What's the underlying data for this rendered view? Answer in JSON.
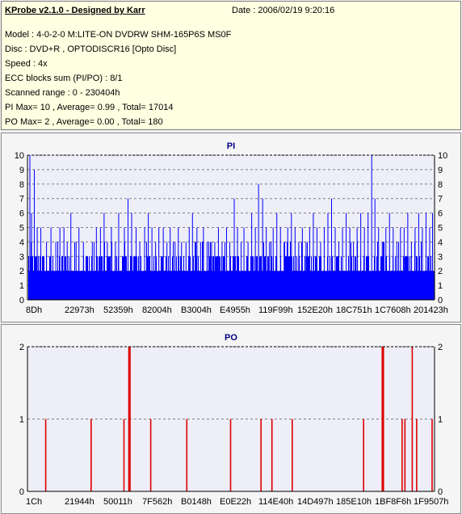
{
  "info": {
    "title": "KProbe v2.1.0 - Designed by Karr",
    "date": "Date : 2006/02/19 9:20:16",
    "lines": [
      "Model : 4-0-2-0 M:LITE-ON DVDRW SHM-165P6S MS0F",
      "Disc : DVD+R , OPTODISCR16 [Opto Disc]",
      "Speed : 4x",
      "ECC blocks sum (PI/PO) : 8/1",
      "Scanned range : 0 - 230404h",
      "PI Max= 10 , Average= 0.99 , Total= 17014",
      "PO Max= 2 , Average= 0.00 , Total= 180"
    ]
  },
  "colors": {
    "info_bg": "#ffffe1",
    "plot_bg": "#eeeef8",
    "pi_bar": "#0000ff",
    "po_bar": "#dd0000",
    "grid": "#7f7f7f",
    "title_text": "#000080"
  },
  "chart_data": [
    {
      "type": "bar",
      "title": "PI",
      "ylim": [
        0,
        10
      ],
      "yticks": [
        0,
        1,
        2,
        3,
        4,
        5,
        6,
        7,
        8,
        9,
        10
      ],
      "xtick_labels": [
        "8Dh",
        "22973h",
        "52359h",
        "82004h",
        "B3004h",
        "E4955h",
        "119F99h",
        "152E20h",
        "18C751h",
        "1C7608h",
        "201423h"
      ],
      "grid": true,
      "baseline": 2,
      "spikes": [
        [
          0.004,
          10
        ],
        [
          0.015,
          9
        ],
        [
          0.008,
          6
        ],
        [
          0.022,
          5
        ],
        [
          0.031,
          5
        ],
        [
          0.045,
          4
        ],
        [
          0.056,
          5
        ],
        [
          0.068,
          4
        ],
        [
          0.078,
          5
        ],
        [
          0.088,
          5
        ],
        [
          0.096,
          4
        ],
        [
          0.105,
          6
        ],
        [
          0.118,
          4
        ],
        [
          0.125,
          5
        ],
        [
          0.136,
          4
        ],
        [
          0.145,
          3
        ],
        [
          0.158,
          4
        ],
        [
          0.168,
          5
        ],
        [
          0.178,
          5
        ],
        [
          0.187,
          6
        ],
        [
          0.195,
          4
        ],
        [
          0.205,
          5
        ],
        [
          0.215,
          4
        ],
        [
          0.223,
          6
        ],
        [
          0.237,
          5
        ],
        [
          0.246,
          7
        ],
        [
          0.255,
          6
        ],
        [
          0.266,
          5
        ],
        [
          0.275,
          4
        ],
        [
          0.287,
          5
        ],
        [
          0.296,
          6
        ],
        [
          0.305,
          5
        ],
        [
          0.314,
          4
        ],
        [
          0.322,
          5
        ],
        [
          0.333,
          5
        ],
        [
          0.342,
          4
        ],
        [
          0.35,
          5
        ],
        [
          0.362,
          4
        ],
        [
          0.37,
          5
        ],
        [
          0.378,
          4
        ],
        [
          0.389,
          4
        ],
        [
          0.397,
          5
        ],
        [
          0.405,
          6
        ],
        [
          0.416,
          5
        ],
        [
          0.425,
          4
        ],
        [
          0.432,
          5
        ],
        [
          0.441,
          4
        ],
        [
          0.452,
          4
        ],
        [
          0.46,
          4
        ],
        [
          0.469,
          5
        ],
        [
          0.478,
          4
        ],
        [
          0.489,
          5
        ],
        [
          0.497,
          4
        ],
        [
          0.508,
          7
        ],
        [
          0.516,
          5
        ],
        [
          0.525,
          4
        ],
        [
          0.532,
          5
        ],
        [
          0.542,
          4
        ],
        [
          0.551,
          6
        ],
        [
          0.56,
          5
        ],
        [
          0.568,
          8
        ],
        [
          0.578,
          7
        ],
        [
          0.587,
          5
        ],
        [
          0.595,
          4
        ],
        [
          0.604,
          5
        ],
        [
          0.613,
          6
        ],
        [
          0.622,
          5
        ],
        [
          0.631,
          4
        ],
        [
          0.64,
          5
        ],
        [
          0.649,
          6
        ],
        [
          0.658,
          5
        ],
        [
          0.667,
          4
        ],
        [
          0.676,
          5
        ],
        [
          0.685,
          4
        ],
        [
          0.694,
          5
        ],
        [
          0.703,
          6
        ],
        [
          0.712,
          5
        ],
        [
          0.721,
          4
        ],
        [
          0.73,
          5
        ],
        [
          0.739,
          6
        ],
        [
          0.748,
          7
        ],
        [
          0.757,
          5
        ],
        [
          0.766,
          4
        ],
        [
          0.775,
          5
        ],
        [
          0.784,
          6
        ],
        [
          0.793,
          5
        ],
        [
          0.802,
          4
        ],
        [
          0.811,
          5
        ],
        [
          0.82,
          6
        ],
        [
          0.829,
          5
        ],
        [
          0.838,
          6
        ],
        [
          0.847,
          10
        ],
        [
          0.855,
          7
        ],
        [
          0.864,
          5
        ],
        [
          0.873,
          4
        ],
        [
          0.882,
          5
        ],
        [
          0.891,
          6
        ],
        [
          0.9,
          5
        ],
        [
          0.909,
          4
        ],
        [
          0.918,
          5
        ],
        [
          0.927,
          5
        ],
        [
          0.936,
          6
        ],
        [
          0.945,
          4
        ],
        [
          0.954,
          5
        ],
        [
          0.963,
          6
        ],
        [
          0.972,
          5
        ],
        [
          0.981,
          6
        ],
        [
          0.99,
          5
        ],
        [
          0.997,
          6
        ]
      ]
    },
    {
      "type": "bar",
      "title": "PO",
      "ylim": [
        0,
        2
      ],
      "yticks": [
        0,
        1,
        2
      ],
      "xtick_labels": [
        "1Ch",
        "21944h",
        "50011h",
        "7F562h",
        "B0148h",
        "E0E22h",
        "114E40h",
        "14D497h",
        "185E10h",
        "1BF8F6h",
        "1F9507h"
      ],
      "grid": true,
      "spikes": [
        [
          0.043,
          1
        ],
        [
          0.155,
          1
        ],
        [
          0.236,
          1
        ],
        [
          0.248,
          2
        ],
        [
          0.251,
          2
        ],
        [
          0.302,
          1
        ],
        [
          0.391,
          1
        ],
        [
          0.499,
          1
        ],
        [
          0.574,
          1
        ],
        [
          0.601,
          1
        ],
        [
          0.651,
          1
        ],
        [
          0.827,
          1
        ],
        [
          0.873,
          2
        ],
        [
          0.876,
          2
        ],
        [
          0.922,
          1
        ],
        [
          0.929,
          1
        ],
        [
          0.947,
          2
        ],
        [
          0.958,
          1
        ],
        [
          0.996,
          1
        ]
      ]
    }
  ]
}
